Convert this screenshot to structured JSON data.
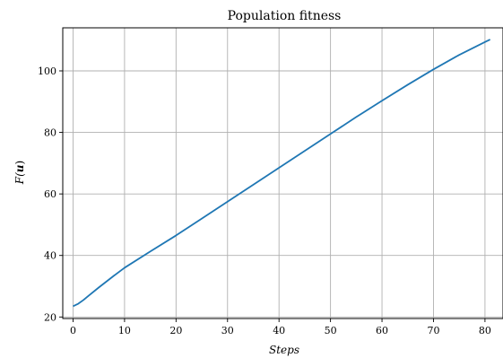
{
  "chart_data": {
    "type": "line",
    "title": "Population fitness",
    "xlabel": "Steps",
    "ylabel_parts": [
      "F(",
      "u",
      ")"
    ],
    "xlim": [
      -2,
      83.5
    ],
    "ylim": [
      19.5,
      114
    ],
    "xticks": [
      0,
      10,
      20,
      30,
      40,
      50,
      60,
      70,
      80
    ],
    "yticks": [
      20,
      40,
      60,
      80,
      100
    ],
    "grid": true,
    "colors": {
      "line": "#1f77b4",
      "grid": "#b0b0b0"
    },
    "series": [
      {
        "x": [
          0,
          1,
          2,
          3,
          5,
          8,
          10,
          15,
          20,
          25,
          30,
          35,
          40,
          45,
          50,
          55,
          60,
          65,
          70,
          75,
          80,
          81
        ],
        "y": [
          23.5,
          24.3,
          25.5,
          26.9,
          29.6,
          33.5,
          36.0,
          41.3,
          46.5,
          52.0,
          57.5,
          63.0,
          68.5,
          74.0,
          79.5,
          85.0,
          90.3,
          95.5,
          100.5,
          105.2,
          109.4,
          110.2
        ]
      }
    ]
  }
}
